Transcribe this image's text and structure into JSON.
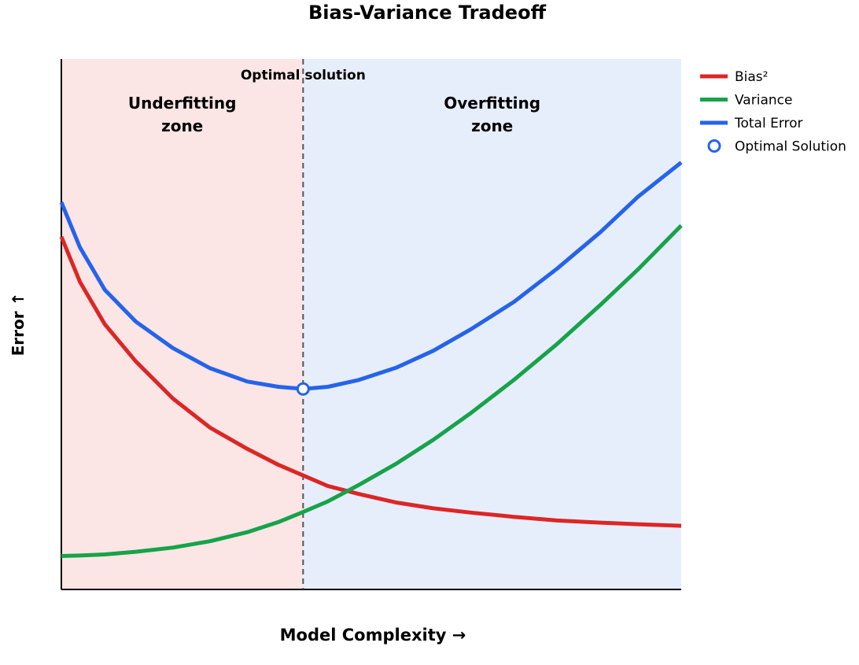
{
  "chart_data": {
    "type": "line",
    "title": "Bias-Variance Tradeoff",
    "xlabel": "Model Complexity →",
    "ylabel": "Error ↑",
    "xlim": [
      0,
      10
    ],
    "ylim": [
      0,
      10
    ],
    "grid": false,
    "legend": "right",
    "zones": [
      {
        "label_lines": [
          "Underfitting",
          "zone"
        ],
        "x_from": 0,
        "x_to": 3.9,
        "color": "#fbe5e5"
      },
      {
        "label_lines": [
          "Overfitting",
          "zone"
        ],
        "x_from": 3.9,
        "x_to": 10,
        "color": "#e7eefb"
      }
    ],
    "optimal_line": {
      "x": 3.9,
      "label": "Optimal solution"
    },
    "optimal_point": {
      "x": 3.9,
      "y": 3.78,
      "color": "#2563eb"
    },
    "x": [
      0,
      0.3,
      0.7,
      1.2,
      1.8,
      2.4,
      3.0,
      3.5,
      3.9,
      4.3,
      4.8,
      5.4,
      6.0,
      6.6,
      7.3,
      8.0,
      8.7,
      9.3,
      10
    ],
    "series": [
      {
        "name": "Bias²",
        "color": "#dc2626",
        "values": [
          6.65,
          5.8,
          5.0,
          4.3,
          3.6,
          3.05,
          2.65,
          2.35,
          2.15,
          1.95,
          1.8,
          1.64,
          1.53,
          1.45,
          1.37,
          1.3,
          1.26,
          1.23,
          1.2
        ]
      },
      {
        "name": "Variance",
        "color": "#16a34a",
        "values": [
          0.63,
          0.64,
          0.66,
          0.71,
          0.79,
          0.91,
          1.08,
          1.27,
          1.46,
          1.66,
          1.97,
          2.37,
          2.82,
          3.32,
          3.95,
          4.63,
          5.37,
          6.03,
          6.86
        ]
      },
      {
        "name": "Total Error",
        "color": "#2563eb",
        "values": [
          7.3,
          6.45,
          5.65,
          5.05,
          4.55,
          4.17,
          3.92,
          3.82,
          3.78,
          3.82,
          3.95,
          4.18,
          4.5,
          4.9,
          5.42,
          6.05,
          6.74,
          7.4,
          8.05
        ]
      }
    ],
    "legend_items": [
      {
        "label": "Bias²",
        "color": "#dc2626",
        "kind": "line"
      },
      {
        "label": "Variance",
        "color": "#16a34a",
        "kind": "line"
      },
      {
        "label": "Total Error",
        "color": "#2563eb",
        "kind": "line"
      },
      {
        "label": "Optimal Solution",
        "color": "#2563eb",
        "kind": "marker"
      }
    ]
  }
}
